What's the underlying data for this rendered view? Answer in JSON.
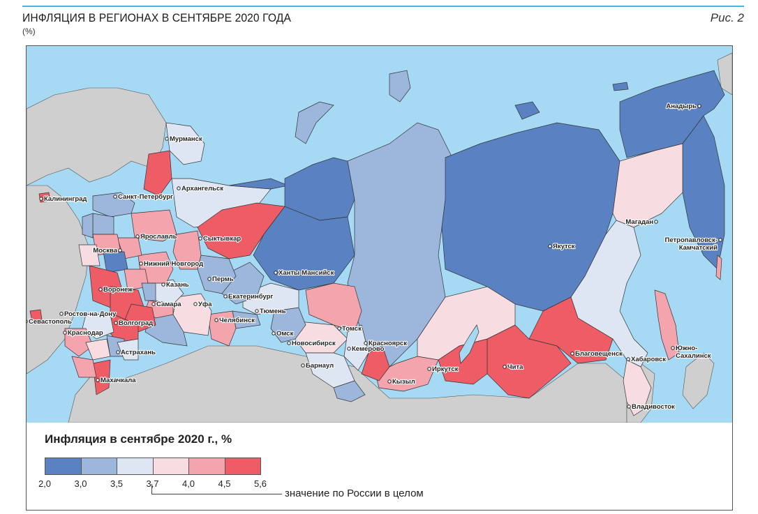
{
  "header": {
    "title": "ИНФЛЯЦИЯ В РЕГИОНАХ В СЕНТЯБРЕ 2020 ГОДА",
    "unit": "(%)",
    "figure_label": "Рис. 2"
  },
  "legend": {
    "title": "Инфляция в сентябре 2020 г., %",
    "bins": [
      {
        "from": "2,0",
        "to": "3,0",
        "color": "#5a82c2"
      },
      {
        "from": "3,0",
        "to": "3,5",
        "color": "#9cb6dc"
      },
      {
        "from": "3,5",
        "to": "3,7",
        "color": "#dfe6f3"
      },
      {
        "from": "3,7",
        "to": "4,0",
        "color": "#f7dde2"
      },
      {
        "from": "4,0",
        "to": "4,5",
        "color": "#f3a4ac"
      },
      {
        "from": "4,5",
        "to": "5,6",
        "color": "#ee5c66"
      }
    ],
    "ticks": [
      "2,0",
      "3,0",
      "3,5",
      "3,7",
      "4,0",
      "4,5",
      "5,6"
    ],
    "russia_value_note": "значение по России в целом"
  },
  "colors": {
    "sea": "#a6daf4",
    "foreign_land": "#cfcfcf",
    "border": "#333333"
  },
  "cities": [
    {
      "name": "Мурманск"
    },
    {
      "name": "Архангельск"
    },
    {
      "name": "Калининград"
    },
    {
      "name": "Санкт-Петербург"
    },
    {
      "name": "Ярославль"
    },
    {
      "name": "Москва"
    },
    {
      "name": "Сыктывкар"
    },
    {
      "name": "Нижний Новгород"
    },
    {
      "name": "Пермь"
    },
    {
      "name": "Ханты-Мансийск"
    },
    {
      "name": "Якутск"
    },
    {
      "name": "Магадан"
    },
    {
      "name": "Анадырь"
    },
    {
      "name": "Петропавловск-"
    },
    {
      "name": "Камчатский"
    },
    {
      "name": "Воронеж"
    },
    {
      "name": "Казань"
    },
    {
      "name": "Екатеринбург"
    },
    {
      "name": "Тюмень"
    },
    {
      "name": "Самара"
    },
    {
      "name": "Уфа"
    },
    {
      "name": "Ростов-на-Дону"
    },
    {
      "name": "Волгоград"
    },
    {
      "name": "Челябинск"
    },
    {
      "name": "Севастополь"
    },
    {
      "name": "Краснодар"
    },
    {
      "name": "Омск"
    },
    {
      "name": "Томск"
    },
    {
      "name": "Новосибирск"
    },
    {
      "name": "Кемерово"
    },
    {
      "name": "Красноярск"
    },
    {
      "name": "Астрахань"
    },
    {
      "name": "Барнаул"
    },
    {
      "name": "Иркутск"
    },
    {
      "name": "Чита"
    },
    {
      "name": "Благовещенск"
    },
    {
      "name": "Хабаровск"
    },
    {
      "name": "Южно-"
    },
    {
      "name": "Сахалинск"
    },
    {
      "name": "Кызыл"
    },
    {
      "name": "Махачкала"
    },
    {
      "name": "Владивосток"
    }
  ]
}
